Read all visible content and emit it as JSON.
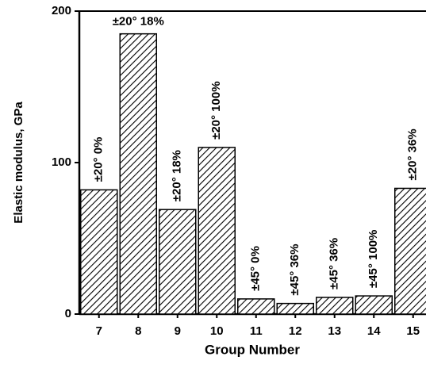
{
  "chart_data": {
    "type": "bar",
    "categories": [
      "7",
      "8",
      "9",
      "10",
      "11",
      "12",
      "13",
      "14",
      "15"
    ],
    "values": [
      82,
      185,
      69,
      110,
      10,
      7,
      11,
      12,
      83
    ],
    "annotations": [
      "±20° 0%",
      "±20° 18%",
      "±20° 18%",
      "±20° 100%",
      "±45° 0%",
      "±45° 36%",
      "±45° 36%",
      "±45° 100%",
      "±20° 36%"
    ],
    "xlabel": "Group Number",
    "ylabel": "Elastic modulus, GPa",
    "ylim": [
      0,
      200
    ],
    "yticks": [
      0,
      100,
      200
    ],
    "color": "#000000"
  }
}
